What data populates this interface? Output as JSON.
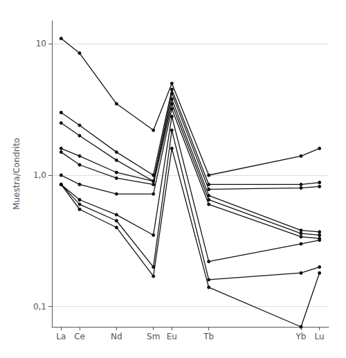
{
  "chart_data": {
    "type": "line",
    "ylabel": "Muestra/Condrito",
    "x": [
      57,
      58,
      60,
      62,
      63,
      65,
      70,
      71
    ],
    "xlim": [
      56.5,
      71.5
    ],
    "xticks": [
      {
        "value": 57,
        "label": "La"
      },
      {
        "value": 58,
        "label": "Ce"
      },
      {
        "value": 60,
        "label": "Nd"
      },
      {
        "value": 62,
        "label": "Sm"
      },
      {
        "value": 63,
        "label": "Eu"
      },
      {
        "value": 65,
        "label": "Tb"
      },
      {
        "value": 70,
        "label": "Yb"
      },
      {
        "value": 71,
        "label": "Lu"
      }
    ],
    "ylim": [
      0.07,
      15
    ],
    "yticks": [
      {
        "value": 0.1,
        "label": "0,1"
      },
      {
        "value": 1.0,
        "label": "1,0"
      },
      10
    ],
    "log": "y",
    "grid": true,
    "color": "#111111",
    "marker": "circle",
    "series": [
      {
        "values": [
          11.0,
          8.5,
          3.5,
          2.2,
          5.0,
          1.0,
          1.4,
          1.6
        ]
      },
      {
        "values": [
          3.0,
          2.4,
          1.5,
          1.0,
          4.5,
          0.85,
          0.85,
          0.88
        ]
      },
      {
        "values": [
          2.5,
          2.0,
          1.3,
          0.9,
          4.2,
          0.78,
          0.8,
          0.82
        ]
      },
      {
        "values": [
          1.6,
          1.4,
          1.05,
          0.9,
          3.8,
          0.7,
          0.38,
          0.37
        ]
      },
      {
        "values": [
          1.5,
          1.2,
          0.95,
          0.85,
          3.5,
          0.65,
          0.36,
          0.35
        ]
      },
      {
        "values": [
          1.0,
          0.85,
          0.72,
          0.72,
          3.2,
          0.6,
          0.34,
          0.33
        ]
      },
      {
        "values": [
          0.85,
          0.65,
          0.5,
          0.35,
          2.8,
          0.22,
          0.3,
          0.32
        ]
      },
      {
        "values": [
          0.85,
          0.6,
          0.45,
          0.2,
          2.2,
          0.16,
          0.18,
          0.2
        ]
      },
      {
        "values": [
          0.85,
          0.55,
          0.4,
          0.17,
          1.6,
          0.14,
          0.07,
          0.18
        ]
      }
    ]
  }
}
